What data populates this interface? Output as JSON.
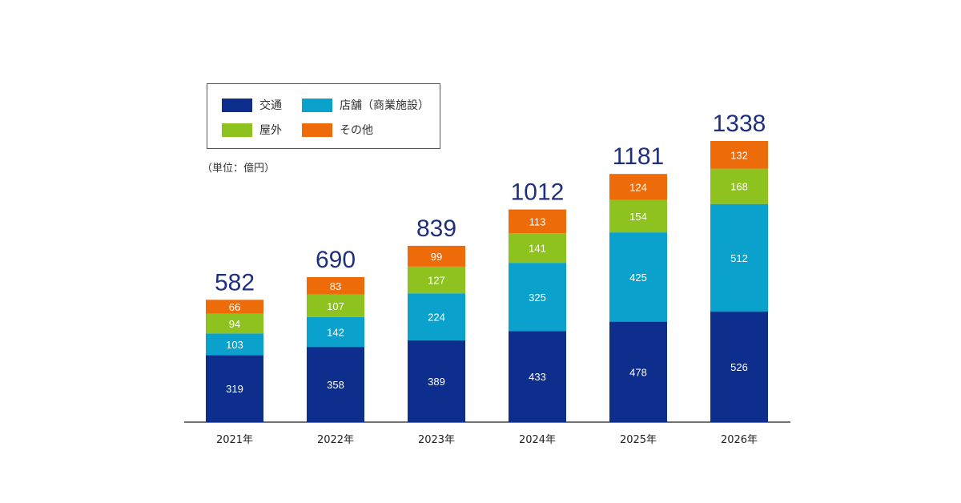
{
  "chart_data": {
    "type": "bar",
    "stacked": true,
    "unit_label": "（単位：億円）",
    "categories": [
      "2021年",
      "2022年",
      "2023年",
      "2024年",
      "2025年",
      "2026年"
    ],
    "series": [
      {
        "name": "交通",
        "color": "#0d2e8c",
        "values": [
          319,
          358,
          389,
          433,
          478,
          526
        ]
      },
      {
        "name": "店舗（商業施設）",
        "color": "#0aa2cc",
        "values": [
          103,
          142,
          224,
          325,
          425,
          512
        ]
      },
      {
        "name": "屋外",
        "color": "#8dc21f",
        "values": [
          94,
          107,
          127,
          141,
          154,
          168
        ]
      },
      {
        "name": "その他",
        "color": "#ee6b0a",
        "values": [
          66,
          83,
          99,
          113,
          124,
          132
        ]
      }
    ],
    "totals": [
      582,
      690,
      839,
      1012,
      1181,
      1338
    ],
    "total_color": "#1f2f7e",
    "legend_position": "top-left",
    "grid": false
  }
}
